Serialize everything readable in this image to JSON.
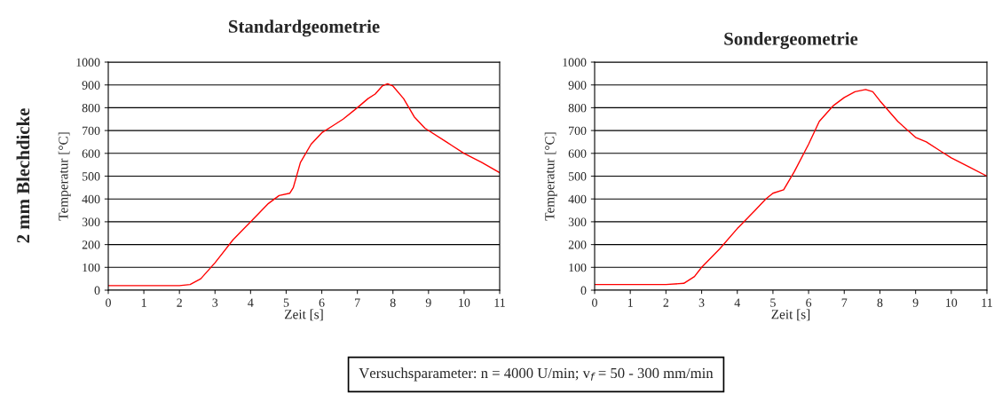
{
  "chart_data": [
    {
      "type": "line",
      "title": "Standardgeometrie",
      "xlabel": "Zeit [s]",
      "ylabel": "Temperatur [°C]",
      "xlim": [
        0,
        11
      ],
      "ylim": [
        0,
        1000
      ],
      "xticks": [
        0,
        1,
        2,
        3,
        4,
        5,
        6,
        7,
        8,
        9,
        10,
        11
      ],
      "yticks": [
        0,
        100,
        200,
        300,
        400,
        500,
        600,
        700,
        800,
        900,
        1000
      ],
      "grid": "y",
      "marker": "none",
      "line_style": "solid",
      "annotations": [
        "2 mm Blechdicke"
      ],
      "series": [
        {
          "color": "#ff0000",
          "x": [
            0,
            1,
            2,
            2.3,
            2.6,
            3,
            3.5,
            4,
            4.5,
            4.8,
            5.1,
            5.2,
            5.4,
            5.7,
            6,
            6.3,
            6.6,
            7,
            7.3,
            7.5,
            7.7,
            7.85,
            8,
            8.3,
            8.6,
            8.9,
            9.5,
            10,
            10.5,
            11
          ],
          "values": [
            20,
            20,
            20,
            25,
            50,
            120,
            220,
            300,
            380,
            415,
            425,
            450,
            560,
            640,
            690,
            720,
            750,
            800,
            840,
            860,
            895,
            905,
            895,
            840,
            760,
            710,
            650,
            600,
            560,
            515
          ]
        }
      ]
    },
    {
      "type": "line",
      "title": "Sondergeometrie",
      "xlabel": "Zeit [s]",
      "ylabel": "Temperatur [°C]",
      "xlim": [
        0,
        11
      ],
      "ylim": [
        0,
        1000
      ],
      "xticks": [
        0,
        1,
        2,
        3,
        4,
        5,
        6,
        7,
        8,
        9,
        10,
        11
      ],
      "yticks": [
        0,
        100,
        200,
        300,
        400,
        500,
        600,
        700,
        800,
        900,
        1000
      ],
      "grid": "y",
      "marker": "none",
      "line_style": "solid",
      "annotations": [
        "Versuchsparameter: n = 4000 U/min; v$_{f}$ = 50 - 300 mm/min"
      ],
      "series": [
        {
          "color": "#ff0000",
          "x": [
            0,
            1,
            2,
            2.5,
            2.8,
            3,
            3.5,
            4,
            4.5,
            4.8,
            5,
            5.3,
            5.6,
            6,
            6.3,
            6.7,
            7,
            7.3,
            7.6,
            7.8,
            8,
            8.5,
            9,
            9.3,
            9.7,
            10,
            10.5,
            11
          ],
          "values": [
            25,
            25,
            25,
            30,
            60,
            100,
            180,
            270,
            350,
            400,
            425,
            440,
            520,
            640,
            740,
            810,
            845,
            870,
            880,
            870,
            830,
            740,
            670,
            650,
            610,
            580,
            540,
            500
          ]
        }
      ]
    }
  ]
}
